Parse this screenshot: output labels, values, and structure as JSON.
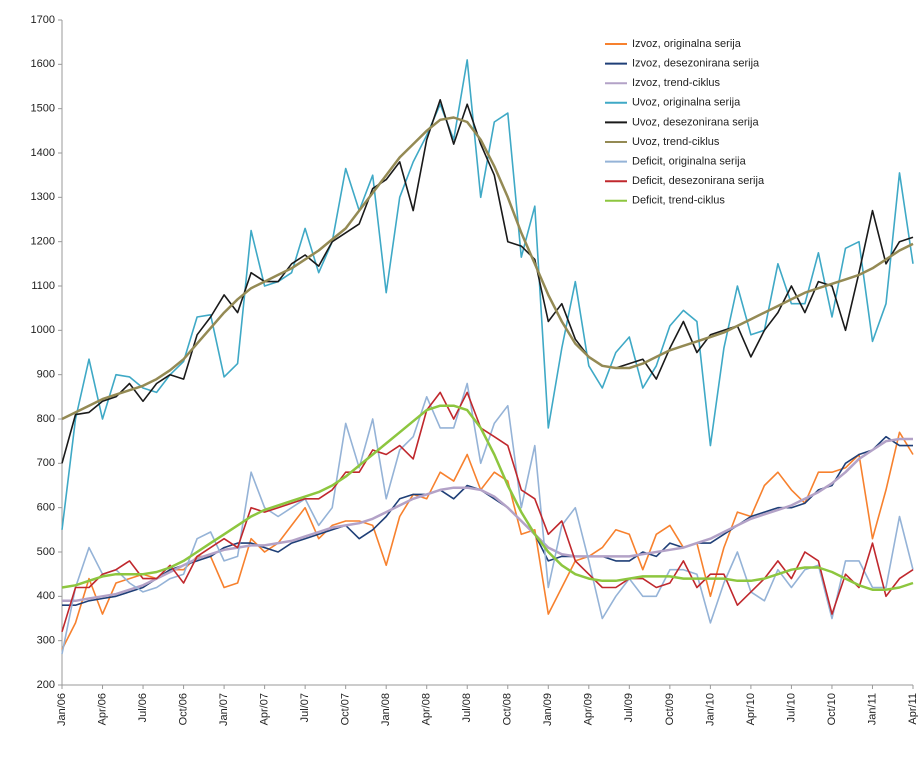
{
  "chart_data": {
    "type": "line",
    "categories": [
      "Jan/06",
      null,
      null,
      "Apr/06",
      null,
      null,
      "Jul/06",
      null,
      null,
      "Oct/06",
      null,
      null,
      "Jan/07",
      null,
      null,
      "Apr/07",
      null,
      null,
      "Jul/07",
      null,
      null,
      "Oct/07",
      null,
      null,
      "Jan/08",
      null,
      null,
      "Apr/08",
      null,
      null,
      "Jul/08",
      null,
      null,
      "Oct/08",
      null,
      null,
      "Jan/09",
      null,
      null,
      "Apr/09",
      null,
      null,
      "Jul/09",
      null,
      null,
      "Oct/09",
      null,
      null,
      "Jan/10",
      null,
      null,
      "Apr/10",
      null,
      null,
      "Jul/10",
      null,
      null,
      "Oct/10",
      null,
      null,
      "Jan/11",
      null,
      null,
      "Apr/11"
    ],
    "ylim": [
      200,
      1700
    ],
    "yticks": [
      200,
      300,
      400,
      500,
      600,
      700,
      800,
      900,
      1000,
      1100,
      1200,
      1300,
      1400,
      1500,
      1600,
      1700
    ],
    "legend": "upper right",
    "series": [
      {
        "name": "Izvoz, originalna serija",
        "color": "#f7812e",
        "values": [
          280,
          340,
          440,
          360,
          430,
          440,
          450,
          440,
          460,
          460,
          490,
          490,
          420,
          430,
          530,
          500,
          520,
          560,
          600,
          530,
          560,
          570,
          570,
          560,
          470,
          580,
          630,
          620,
          680,
          660,
          720,
          640,
          680,
          660,
          540,
          550,
          360,
          420,
          480,
          490,
          510,
          550,
          540,
          460,
          540,
          560,
          510,
          520,
          400,
          510,
          590,
          580,
          650,
          680,
          640,
          610,
          680,
          680,
          690,
          720,
          530,
          640,
          770,
          720
        ]
      },
      {
        "name": "Izvoz, desezonirana serija",
        "color": "#1f3f77",
        "values": [
          380,
          380,
          390,
          395,
          400,
          410,
          420,
          440,
          460,
          470,
          480,
          490,
          510,
          520,
          520,
          510,
          500,
          520,
          530,
          540,
          550,
          560,
          530,
          550,
          580,
          620,
          630,
          630,
          640,
          620,
          650,
          640,
          620,
          600,
          570,
          540,
          480,
          490,
          490,
          490,
          490,
          480,
          480,
          500,
          490,
          520,
          510,
          520,
          520,
          540,
          560,
          580,
          590,
          600,
          600,
          610,
          640,
          650,
          700,
          720,
          730,
          760,
          740,
          740
        ]
      },
      {
        "name": "Izvoz, trend-ciklus",
        "color": "#b3a2c7",
        "values": [
          390,
          390,
          395,
          400,
          405,
          415,
          425,
          440,
          455,
          470,
          485,
          495,
          505,
          510,
          515,
          515,
          520,
          525,
          535,
          545,
          555,
          560,
          565,
          575,
          590,
          605,
          620,
          630,
          640,
          645,
          645,
          640,
          625,
          600,
          570,
          540,
          510,
          495,
          490,
          490,
          490,
          490,
          490,
          495,
          500,
          505,
          510,
          520,
          530,
          545,
          560,
          575,
          585,
          595,
          605,
          620,
          635,
          655,
          680,
          710,
          730,
          750,
          755,
          755
        ]
      },
      {
        "name": "Uvoz, originalna serija",
        "color": "#3fa9c6",
        "values": [
          550,
          800,
          935,
          800,
          900,
          895,
          870,
          860,
          900,
          930,
          1030,
          1035,
          895,
          925,
          1225,
          1100,
          1110,
          1130,
          1230,
          1130,
          1200,
          1365,
          1270,
          1350,
          1085,
          1300,
          1380,
          1440,
          1510,
          1430,
          1610,
          1300,
          1470,
          1490,
          1165,
          1280,
          780,
          960,
          1110,
          920,
          870,
          950,
          985,
          870,
          920,
          1010,
          1045,
          1020,
          740,
          960,
          1100,
          990,
          1000,
          1150,
          1060,
          1060,
          1175,
          1030,
          1185,
          1200,
          975,
          1060,
          1355,
          1150
        ]
      },
      {
        "name": "Uvoz, desezonirana serija",
        "color": "#1a1a1a",
        "values": [
          700,
          810,
          815,
          840,
          850,
          880,
          840,
          880,
          900,
          890,
          990,
          1030,
          1080,
          1040,
          1130,
          1110,
          1110,
          1150,
          1170,
          1145,
          1200,
          1220,
          1240,
          1320,
          1340,
          1380,
          1270,
          1430,
          1520,
          1420,
          1510,
          1420,
          1350,
          1200,
          1190,
          1160,
          1020,
          1060,
          980,
          940,
          920,
          915,
          925,
          935,
          890,
          960,
          1020,
          950,
          990,
          1000,
          1010,
          940,
          1000,
          1040,
          1100,
          1040,
          1110,
          1100,
          1000,
          1130,
          1270,
          1150,
          1200,
          1210
        ]
      },
      {
        "name": "Uvoz, trend-ciklus",
        "color": "#948a54",
        "values": [
          800,
          815,
          830,
          845,
          855,
          865,
          875,
          890,
          910,
          935,
          970,
          1005,
          1040,
          1070,
          1095,
          1110,
          1125,
          1140,
          1160,
          1180,
          1205,
          1230,
          1270,
          1310,
          1350,
          1390,
          1420,
          1450,
          1475,
          1480,
          1470,
          1430,
          1370,
          1300,
          1220,
          1150,
          1080,
          1020,
          970,
          940,
          920,
          915,
          915,
          925,
          940,
          955,
          965,
          975,
          985,
          995,
          1010,
          1025,
          1040,
          1055,
          1070,
          1085,
          1095,
          1105,
          1115,
          1125,
          1140,
          1160,
          1180,
          1195
        ]
      },
      {
        "name": "Deficit, originalna serija",
        "color": "#95b3d7",
        "values": [
          270,
          420,
          510,
          450,
          460,
          430,
          410,
          420,
          440,
          450,
          530,
          545,
          480,
          490,
          680,
          600,
          580,
          600,
          620,
          560,
          600,
          790,
          690,
          800,
          620,
          730,
          760,
          850,
          780,
          780,
          880,
          700,
          790,
          830,
          600,
          740,
          420,
          560,
          600,
          480,
          350,
          400,
          440,
          400,
          400,
          460,
          460,
          450,
          340,
          430,
          500,
          410,
          390,
          460,
          420,
          460,
          470,
          350,
          480,
          480,
          420,
          420,
          580,
          460
        ]
      },
      {
        "name": "Deficit, desezonirana serija",
        "color": "#c0282d",
        "values": [
          320,
          420,
          420,
          450,
          460,
          480,
          440,
          440,
          470,
          430,
          490,
          510,
          530,
          510,
          600,
          590,
          600,
          610,
          620,
          620,
          640,
          680,
          680,
          730,
          720,
          740,
          710,
          820,
          860,
          800,
          860,
          780,
          760,
          740,
          640,
          620,
          540,
          570,
          480,
          450,
          420,
          420,
          440,
          440,
          420,
          430,
          480,
          420,
          450,
          450,
          380,
          410,
          440,
          480,
          440,
          500,
          480,
          360,
          450,
          420,
          520,
          400,
          440,
          460
        ]
      },
      {
        "name": "Deficit, trend-ciklus",
        "color": "#8dc63f",
        "values": [
          420,
          425,
          435,
          445,
          450,
          450,
          450,
          455,
          465,
          480,
          500,
          520,
          540,
          560,
          580,
          595,
          605,
          615,
          625,
          635,
          650,
          670,
          695,
          720,
          745,
          770,
          795,
          820,
          830,
          830,
          820,
          780,
          720,
          650,
          590,
          540,
          500,
          470,
          450,
          440,
          435,
          435,
          440,
          445,
          445,
          445,
          440,
          440,
          440,
          440,
          435,
          435,
          440,
          450,
          460,
          465,
          465,
          455,
          440,
          425,
          415,
          415,
          420,
          430
        ]
      }
    ]
  }
}
